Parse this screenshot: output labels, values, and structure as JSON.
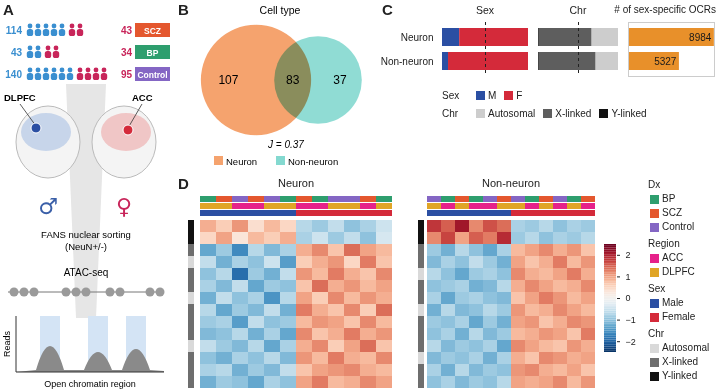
{
  "panel_labels": [
    "A",
    "B",
    "C",
    "D"
  ],
  "diagram": {
    "cohorts": [
      {
        "name": "SCZ",
        "male": 114,
        "female": 43,
        "color": "#e4572e"
      },
      {
        "name": "BP",
        "male": 43,
        "female": 34,
        "color": "#2e9e6e"
      },
      {
        "name": "Control",
        "male": 140,
        "female": 95,
        "color": "#8466c4"
      }
    ],
    "male_color": "#3a8fd0",
    "female_color": "#c8255a",
    "regions": [
      "DLPFC",
      "ACC"
    ],
    "sex_symbols": [
      "♂",
      "♀"
    ],
    "sorting": [
      "FANS nuclear sorting",
      "(NeuN+/-)"
    ],
    "assay": "ATAC-seq",
    "track_axis": "Reads",
    "track_caption": "Open chromatin region"
  },
  "chart_data": [
    {
      "type": "venn",
      "title": "Cell type",
      "sets": [
        {
          "name": "Neuron",
          "value": 107,
          "color": "#f5a36e"
        },
        {
          "name": "Non-neuron",
          "value": 37,
          "color": "#84d9d0"
        }
      ],
      "intersection": 83,
      "annotation": "J = 0.37"
    },
    {
      "type": "bar",
      "orientation": "horizontal",
      "stacked": true,
      "title": "Sex",
      "categories": [
        "Neuron",
        "Non-neuron"
      ],
      "series": [
        {
          "name": "M",
          "color": "#2b4fa3",
          "values": [
            0.2,
            0.07
          ]
        },
        {
          "name": "F",
          "color": "#d42a3a",
          "values": [
            0.8,
            0.93
          ]
        }
      ],
      "xlim": [
        0,
        1
      ],
      "midline": 0.5,
      "tick_labels": "y"
    },
    {
      "type": "bar",
      "orientation": "horizontal",
      "stacked": true,
      "title": "Chr",
      "categories": [
        "Neuron",
        "Non-neuron"
      ],
      "series": [
        {
          "name": "Y-linked",
          "color": "#111111",
          "values": [
            0.01,
            0.01
          ]
        },
        {
          "name": "X-linked",
          "color": "#5e5e5e",
          "values": [
            0.66,
            0.71
          ]
        },
        {
          "name": "Autosomal",
          "color": "#cdcdcd",
          "values": [
            0.33,
            0.28
          ]
        }
      ],
      "xlim": [
        0,
        1
      ],
      "midline": 0.5,
      "tick_labels": false
    },
    {
      "type": "bar",
      "orientation": "horizontal",
      "title": "# of sex-specific OCRs",
      "categories": [
        "Neuron",
        "Non-neuron"
      ],
      "values": [
        8984,
        5327
      ],
      "color": "#e8902a",
      "xlim": [
        0,
        9000
      ],
      "data_labels": true,
      "tick_labels": false
    },
    {
      "type": "heatmap",
      "title": "Neuron",
      "columns": {
        "Dx": [
          "BP",
          "SCZ",
          "Control",
          "SCZ",
          "Control",
          "BP",
          "SCZ",
          "BP",
          "Control",
          "Control",
          "SCZ",
          "BP"
        ],
        "Region": [
          "DLPFC",
          "DLPFC",
          "ACC",
          "ACC",
          "DLPFC",
          "DLPFC",
          "ACC",
          "ACC",
          "DLPFC",
          "DLPFC",
          "ACC",
          "DLPFC"
        ],
        "Sex": [
          "Male",
          "Male",
          "Male",
          "Male",
          "Male",
          "Male",
          "Female",
          "Female",
          "Female",
          "Female",
          "Female",
          "Female"
        ]
      },
      "row_chr": [
        "Y-linked",
        "Y-linked",
        "X-linked",
        "Autosomal",
        "X-linked",
        "X-linked",
        "Autosomal",
        "X-linked",
        "X-linked",
        "X-linked",
        "Autosomal",
        "X-linked",
        "X-linked",
        "X-linked"
      ],
      "cells": [
        [
          0.9,
          0.6,
          1.1,
          0.4,
          0.8,
          0.5,
          -0.7,
          -0.9,
          -0.6,
          -1.0,
          -0.8,
          -0.5
        ],
        [
          0.5,
          1.0,
          0.3,
          0.8,
          0.6,
          0.9,
          -0.8,
          -0.5,
          -0.9,
          -0.6,
          -1.0,
          -0.4
        ],
        [
          -1.3,
          -0.9,
          -1.6,
          -0.7,
          -1.1,
          -0.8,
          0.9,
          1.2,
          0.7,
          1.4,
          1.0,
          0.8
        ],
        [
          -0.6,
          -1.2,
          -0.8,
          -1.0,
          -0.5,
          -1.4,
          0.6,
          0.9,
          1.1,
          0.5,
          1.3,
          0.7
        ],
        [
          -1.0,
          -0.7,
          -1.9,
          -0.9,
          -1.2,
          -0.6,
          1.1,
          0.8,
          1.3,
          0.9,
          0.7,
          1.2
        ],
        [
          -0.8,
          -1.1,
          -0.6,
          -1.3,
          -0.9,
          -1.0,
          0.7,
          1.4,
          0.9,
          1.1,
          0.8,
          1.0
        ],
        [
          -1.2,
          -0.6,
          -1.0,
          -0.8,
          -1.5,
          -0.7,
          1.0,
          0.6,
          1.2,
          0.8,
          1.1,
          0.9
        ],
        [
          -0.7,
          -1.3,
          -0.9,
          -1.1,
          -0.6,
          -1.2,
          1.3,
          0.9,
          0.7,
          1.2,
          0.6,
          1.4
        ],
        [
          -0.9,
          -0.8,
          -1.4,
          -0.6,
          -1.0,
          -0.9,
          0.8,
          1.1,
          1.0,
          0.7,
          1.2,
          0.8
        ],
        [
          -1.1,
          -1.0,
          -0.7,
          -1.2,
          -0.8,
          -1.3,
          1.2,
          0.7,
          0.9,
          1.3,
          0.9,
          1.1
        ],
        [
          -0.6,
          -0.9,
          -1.1,
          -0.7,
          -1.3,
          -0.8,
          0.9,
          1.2,
          0.6,
          1.0,
          1.4,
          0.7
        ],
        [
          -1.0,
          -1.2,
          -0.8,
          -1.0,
          -0.7,
          -1.1,
          1.1,
          0.8,
          1.3,
          0.9,
          0.8,
          1.2
        ],
        [
          -0.8,
          -0.7,
          -1.2,
          -0.9,
          -1.1,
          -0.6,
          0.7,
          1.0,
          1.1,
          1.2,
          0.9,
          0.8
        ],
        [
          -1.2,
          -0.9,
          -1.0,
          -1.3,
          -0.8,
          -1.0,
          1.0,
          1.3,
          0.8,
          0.9,
          1.2,
          1.0
        ]
      ],
      "color_range": [
        -2.5,
        2.5
      ],
      "color_ticks": [
        2,
        1,
        0,
        {
          "value": -1,
          "label": "−1"
        },
        {
          "value": -2,
          "label": "−2"
        }
      ]
    },
    {
      "type": "heatmap",
      "title": "Non-neuron",
      "columns": {
        "Dx": [
          "Control",
          "BP",
          "SCZ",
          "BP",
          "Control",
          "SCZ",
          "Control",
          "BP",
          "SCZ",
          "Control",
          "BP",
          "SCZ"
        ],
        "Region": [
          "DLPFC",
          "ACC",
          "DLPFC",
          "ACC",
          "ACC",
          "DLPFC",
          "DLPFC",
          "ACC",
          "DLPFC",
          "ACC",
          "DLPFC",
          "ACC"
        ],
        "Sex": [
          "Male",
          "Male",
          "Male",
          "Male",
          "Male",
          "Male",
          "Female",
          "Female",
          "Female",
          "Female",
          "Female",
          "Female"
        ]
      },
      "row_chr": [
        "Y-linked",
        "Y-linked",
        "X-linked",
        "X-linked",
        "Autosomal",
        "X-linked",
        "X-linked",
        "Autosomal",
        "X-linked",
        "X-linked",
        "X-linked",
        "Autosomal",
        "X-linked",
        "X-linked"
      ],
      "cells": [
        [
          1.8,
          1.5,
          2.1,
          1.2,
          1.6,
          1.4,
          -0.8,
          -0.9,
          -0.7,
          -1.0,
          -0.8,
          -0.9
        ],
        [
          1.2,
          1.7,
          1.0,
          1.5,
          1.3,
          1.9,
          -0.9,
          -0.7,
          -1.0,
          -0.8,
          -0.9,
          -0.7
        ],
        [
          -0.9,
          -1.2,
          -0.7,
          -1.0,
          -1.3,
          -0.8,
          0.8,
          1.0,
          1.2,
          0.9,
          1.1,
          0.7
        ],
        [
          -1.1,
          -0.8,
          -1.0,
          -0.6,
          -0.9,
          -1.2,
          1.0,
          0.7,
          0.9,
          1.3,
          0.8,
          1.1
        ],
        [
          -0.7,
          -1.0,
          -1.3,
          -0.9,
          -0.8,
          -1.0,
          1.2,
          0.9,
          0.8,
          1.0,
          1.3,
          0.9
        ],
        [
          -1.0,
          -0.9,
          -0.8,
          -1.2,
          -1.1,
          -0.7,
          0.9,
          1.2,
          1.0,
          0.8,
          0.9,
          1.2
        ],
        [
          -0.8,
          -1.3,
          -0.9,
          -0.8,
          -1.0,
          -1.1,
          0.7,
          1.0,
          1.3,
          1.1,
          0.8,
          1.0
        ],
        [
          -1.2,
          -0.7,
          -1.1,
          -1.0,
          -0.7,
          -0.9,
          1.1,
          0.8,
          0.9,
          1.2,
          1.0,
          0.8
        ],
        [
          -0.9,
          -1.0,
          -0.8,
          -1.3,
          -0.9,
          -1.2,
          1.0,
          1.1,
          0.7,
          0.9,
          1.2,
          1.1
        ],
        [
          -1.0,
          -0.8,
          -1.2,
          -0.7,
          -1.1,
          -0.9,
          0.8,
          0.9,
          1.1,
          1.0,
          0.7,
          1.3
        ],
        [
          -0.7,
          -1.1,
          -0.9,
          -1.0,
          -0.8,
          -1.3,
          1.2,
          1.0,
          0.8,
          0.7,
          1.1,
          0.9
        ],
        [
          -1.1,
          -0.9,
          -1.0,
          -0.8,
          -1.2,
          -0.8,
          0.9,
          0.7,
          1.2,
          1.1,
          0.9,
          1.0
        ],
        [
          -0.8,
          -1.2,
          -0.7,
          -1.1,
          -0.9,
          -1.0,
          1.1,
          1.2,
          0.9,
          0.8,
          1.0,
          0.7
        ],
        [
          -1.0,
          -0.8,
          -1.1,
          -0.9,
          -1.0,
          -0.7,
          1.0,
          0.9,
          1.0,
          1.2,
          0.8,
          1.1
        ]
      ],
      "color_range": [
        -2.5,
        2.5
      ],
      "color_ticks": [
        2,
        1,
        0,
        {
          "value": -1,
          "label": "−1"
        },
        {
          "value": -2,
          "label": "−2"
        }
      ]
    }
  ],
  "heatmap_legend": [
    {
      "title": "Dx",
      "items": [
        {
          "name": "BP",
          "color": "#2e9e6e"
        },
        {
          "name": "SCZ",
          "color": "#e4572e"
        },
        {
          "name": "Control",
          "color": "#8466c4"
        }
      ]
    },
    {
      "title": "Region",
      "items": [
        {
          "name": "ACC",
          "color": "#e6218a"
        },
        {
          "name": "DLPFC",
          "color": "#e0a526"
        }
      ]
    },
    {
      "title": "Sex",
      "items": [
        {
          "name": "Male",
          "color": "#2b4fa3"
        },
        {
          "name": "Female",
          "color": "#d42a3a"
        }
      ]
    },
    {
      "title": "Chr",
      "items": [
        {
          "name": "Autosomal",
          "color": "#d9d9d9"
        },
        {
          "name": "X-linked",
          "color": "#6e6e6e"
        },
        {
          "name": "Y-linked",
          "color": "#111111"
        }
      ]
    }
  ]
}
